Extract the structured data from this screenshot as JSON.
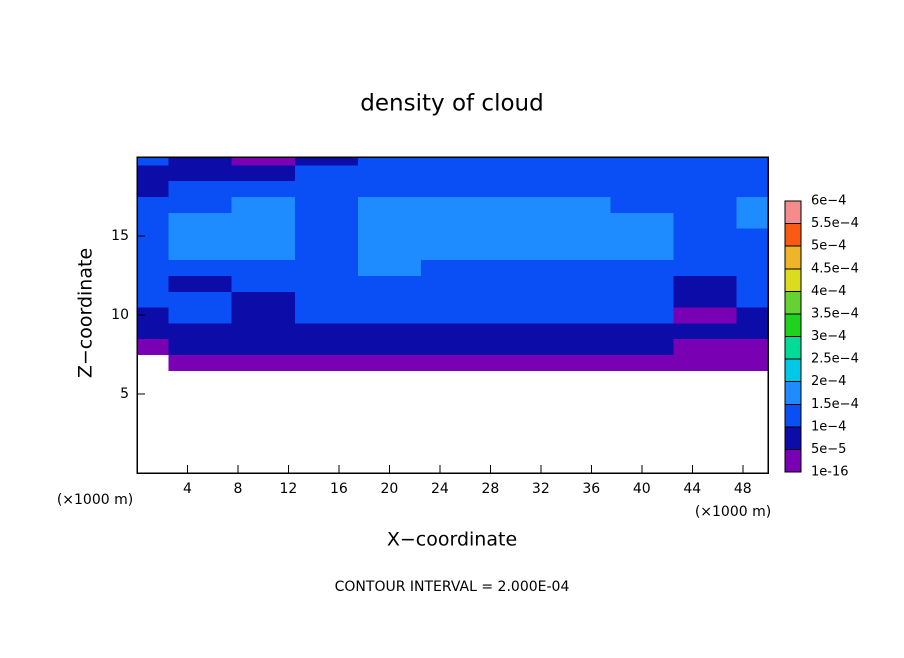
{
  "chart_data": {
    "type": "contour",
    "title": "density of cloud",
    "xlabel": "X−coordinate",
    "ylabel": "Z−coordinate",
    "x_unit_label": "(×1000 m)",
    "y_unit_label": "(×1000 m)",
    "footer": "CONTOUR INTERVAL = 2.000E-04",
    "xlim": [
      0,
      50
    ],
    "ylim": [
      0,
      20
    ],
    "xticks": [
      4,
      8,
      12,
      16,
      20,
      24,
      28,
      32,
      36,
      40,
      44,
      48
    ],
    "yticks": [
      5,
      10,
      15
    ],
    "x": [
      0,
      5,
      10,
      15,
      20,
      25,
      30,
      35,
      40,
      45,
      50
    ],
    "z": [
      0,
      1,
      2,
      3,
      4,
      5,
      6,
      7,
      8,
      9,
      10,
      11,
      12,
      13,
      14,
      15,
      16,
      17,
      18,
      19,
      20
    ],
    "values": [
      [
        null,
        null,
        null,
        null,
        null,
        null,
        null,
        null,
        null,
        null,
        null
      ],
      [
        null,
        null,
        null,
        null,
        null,
        null,
        null,
        null,
        null,
        null,
        null
      ],
      [
        null,
        null,
        null,
        null,
        null,
        null,
        null,
        null,
        null,
        null,
        null
      ],
      [
        null,
        null,
        null,
        null,
        null,
        null,
        null,
        null,
        null,
        null,
        null
      ],
      [
        null,
        null,
        null,
        null,
        null,
        null,
        null,
        null,
        null,
        null,
        null
      ],
      [
        null,
        null,
        null,
        null,
        null,
        null,
        null,
        null,
        null,
        null,
        null
      ],
      [
        null,
        null,
        null,
        null,
        null,
        null,
        null,
        null,
        null,
        null,
        null
      ],
      [
        null,
        2e-05,
        2e-05,
        2e-05,
        2e-05,
        2e-05,
        2e-05,
        2e-05,
        2e-05,
        2e-05,
        2e-05
      ],
      [
        2e-05,
        6e-05,
        6e-05,
        6e-05,
        6e-05,
        6e-05,
        6e-05,
        6e-05,
        6e-05,
        2e-05,
        2e-05
      ],
      [
        6e-05,
        9e-05,
        9e-05,
        9e-05,
        9e-05,
        9e-05,
        9e-05,
        9e-05,
        9e-05,
        6e-05,
        6e-05
      ],
      [
        9e-05,
        0.00011,
        9e-05,
        0.00011,
        0.00011,
        0.00011,
        0.00011,
        0.00011,
        0.00011,
        3e-05,
        9e-05
      ],
      [
        0.00011,
        0.00011,
        9e-05,
        0.00011,
        0.00012,
        0.00012,
        0.00012,
        0.00012,
        0.00012,
        6e-05,
        0.00011
      ],
      [
        0.00012,
        9e-05,
        0.00011,
        0.00012,
        0.00013,
        0.00013,
        0.00012,
        0.00013,
        0.00013,
        9e-05,
        0.00012
      ],
      [
        0.00013,
        0.00012,
        0.00013,
        0.00012,
        0.00015,
        0.00014,
        0.00011,
        0.00014,
        0.00014,
        0.00012,
        0.00013
      ],
      [
        0.00014,
        0.00015,
        0.00015,
        0.00012,
        0.00016,
        0.00016,
        0.00015,
        0.00016,
        0.00016,
        0.00013,
        0.00012
      ],
      [
        0.00013,
        0.00016,
        0.00016,
        0.00013,
        0.00016,
        0.00016,
        0.00016,
        0.00016,
        0.00016,
        0.00014,
        0.00012
      ],
      [
        0.00012,
        0.00016,
        0.00016,
        0.00013,
        0.00016,
        0.00016,
        0.00016,
        0.00016,
        0.00015,
        0.00014,
        0.00015
      ],
      [
        0.00011,
        0.00013,
        0.00015,
        0.00012,
        0.00015,
        0.00015,
        0.00015,
        0.00015,
        0.00014,
        0.00013,
        0.00016
      ],
      [
        9e-05,
        0.00011,
        0.00012,
        0.00011,
        0.00012,
        0.00012,
        0.00012,
        0.00012,
        0.00012,
        0.00011,
        0.00012
      ],
      [
        8e-05,
        9e-05,
        9e-05,
        0.0001,
        0.00011,
        0.00011,
        0.00011,
        0.00011,
        0.00011,
        0.00011,
        0.00011
      ],
      [
        0.0001,
        6e-05,
        4e-05,
        9e-05,
        0.00011,
        0.00011,
        0.00011,
        0.00011,
        0.00011,
        0.00011,
        0.00011
      ]
    ],
    "colorbar": {
      "levels": [
        1e-16,
        {
          "value": 5e-05,
          "label": "5e−5"
        },
        {
          "value": 0.0001,
          "label": "1e−4"
        },
        {
          "value": 0.00015,
          "label": "1.5e−4"
        },
        {
          "value": 0.0002,
          "label": "2e−4"
        },
        {
          "value": 0.00025,
          "label": "2.5e−4"
        },
        {
          "value": 0.0003,
          "label": "3e−4"
        },
        {
          "value": 0.00035,
          "label": "3.5e−4"
        },
        {
          "value": 0.0004,
          "label": "4e−4"
        },
        {
          "value": 0.00045,
          "label": "4.5e−4"
        },
        {
          "value": 0.0005,
          "label": "5e−4"
        },
        {
          "value": 0.00055,
          "label": "5.5e−4"
        },
        {
          "value": 0.0006,
          "label": "6e−4"
        }
      ],
      "colors": [
        "#7a00b4",
        "#0c0ca8",
        "#0a4ef5",
        "#1e8cff",
        "#00c8e6",
        "#00dc96",
        "#1ed21e",
        "#64d232",
        "#dcdc1e",
        "#f0b428",
        "#fa5a14",
        "#f58c8c"
      ]
    }
  }
}
